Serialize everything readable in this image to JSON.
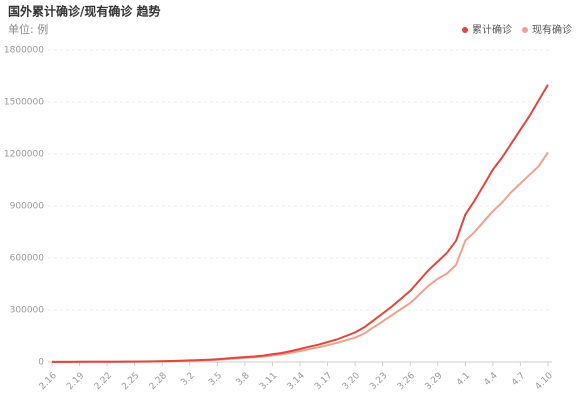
{
  "chart_data": {
    "type": "line",
    "title": "国外累计确诊/现有确诊 趋势",
    "subtitle": "单位: 例",
    "legend": "top-right",
    "grid": true,
    "categories": [
      "2.16",
      null,
      null,
      "2.19",
      null,
      null,
      "2.22",
      null,
      null,
      "2.25",
      null,
      null,
      "2.28",
      null,
      null,
      "3.2",
      null,
      null,
      "3.5",
      null,
      null,
      "3.8",
      null,
      null,
      "3.11",
      null,
      null,
      "3.14",
      null,
      null,
      "3.17",
      null,
      null,
      "3.20",
      null,
      null,
      "3.23",
      null,
      null,
      "3.26",
      null,
      null,
      "3.29",
      null,
      null,
      "4.1",
      null,
      null,
      "4.4",
      null,
      null,
      "4.7",
      null,
      null,
      "4.10"
    ],
    "ylim": [
      0,
      1800000
    ],
    "yticks": [
      0,
      300000,
      600000,
      900000,
      1200000,
      1500000,
      1800000
    ],
    "series": [
      {
        "name": "累计确诊",
        "color": "#e0463c",
        "values": [
          600,
          700,
          800,
          900,
          1000,
          1200,
          1500,
          1800,
          2100,
          2500,
          3000,
          3700,
          4500,
          6000,
          7500,
          9000,
          11000,
          13000,
          16000,
          20000,
          24000,
          28000,
          32000,
          37000,
          45000,
          52000,
          63000,
          75000,
          88000,
          100000,
          115000,
          130000,
          150000,
          170000,
          200000,
          240000,
          280000,
          320000,
          365000,
          410000,
          470000,
          530000,
          580000,
          630000,
          700000,
          850000,
          930000,
          1020000,
          1110000,
          1180000,
          1260000,
          1340000,
          1420000,
          1510000,
          1600000
        ]
      },
      {
        "name": "现有确诊",
        "color": "#f2a08c",
        "values": [
          500,
          600,
          700,
          800,
          900,
          1000,
          1300,
          1500,
          1800,
          2100,
          2500,
          3100,
          3800,
          5000,
          6300,
          7600,
          9300,
          11000,
          13500,
          17000,
          20000,
          23500,
          27000,
          31000,
          38000,
          44000,
          53000,
          63000,
          74000,
          84000,
          97000,
          110000,
          125000,
          140000,
          165000,
          200000,
          235000,
          270000,
          305000,
          340000,
          390000,
          440000,
          480000,
          510000,
          560000,
          700000,
          750000,
          810000,
          870000,
          920000,
          980000,
          1030000,
          1080000,
          1130000,
          1210000
        ]
      }
    ]
  }
}
